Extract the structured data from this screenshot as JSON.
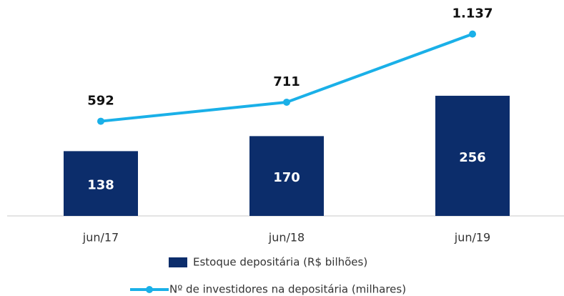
{
  "chart_data": {
    "type": "bar-line",
    "categories": [
      "jun/17",
      "jun/18",
      "jun/19"
    ],
    "series": [
      {
        "name": "Estoque depositária (R$ bilhões)",
        "type": "bar",
        "color": "#0c2d6b",
        "axis": "y",
        "values": [
          138,
          170,
          256
        ]
      },
      {
        "name": "Nº de investidores na depositária (milhares)",
        "type": "line",
        "color": "#1ab0e8",
        "axis": "y2",
        "values": [
          592,
          711,
          1137
        ],
        "value_labels": [
          "592",
          "711",
          "1.137"
        ]
      }
    ],
    "ylim": [
      0,
      460
    ],
    "y2lim": [
      0,
      1350
    ],
    "legend": "bottom"
  }
}
